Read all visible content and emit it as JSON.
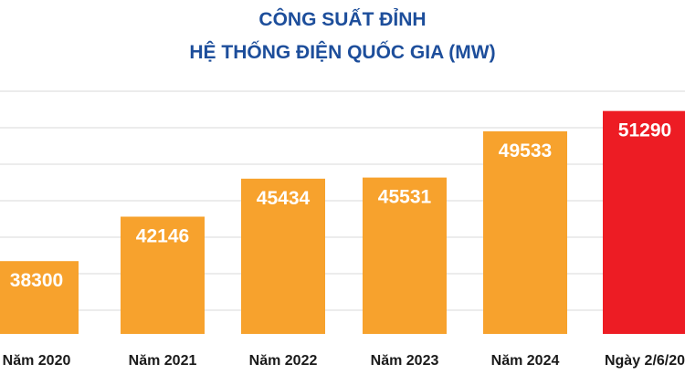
{
  "chart_data": {
    "type": "bar",
    "title_line1": "CÔNG SUẤT ĐỈNH",
    "title_line2": "HỆ THỐNG ĐIỆN QUỐC GIA (MW)",
    "categories": [
      "Năm 2020",
      "Năm 2021",
      "Năm 2022",
      "Năm 2023",
      "Năm 2024",
      "Ngày 2/6/20"
    ],
    "values": [
      38300,
      42146,
      45434,
      45531,
      49533,
      51290
    ],
    "bar_colors": [
      "#f7a22d",
      "#f7a22d",
      "#f7a22d",
      "#f7a22d",
      "#f7a22d",
      "#ed1c24"
    ],
    "gridline_color": "#d9d9d9",
    "grid": true,
    "ylim": [
      32000,
      53000
    ]
  }
}
